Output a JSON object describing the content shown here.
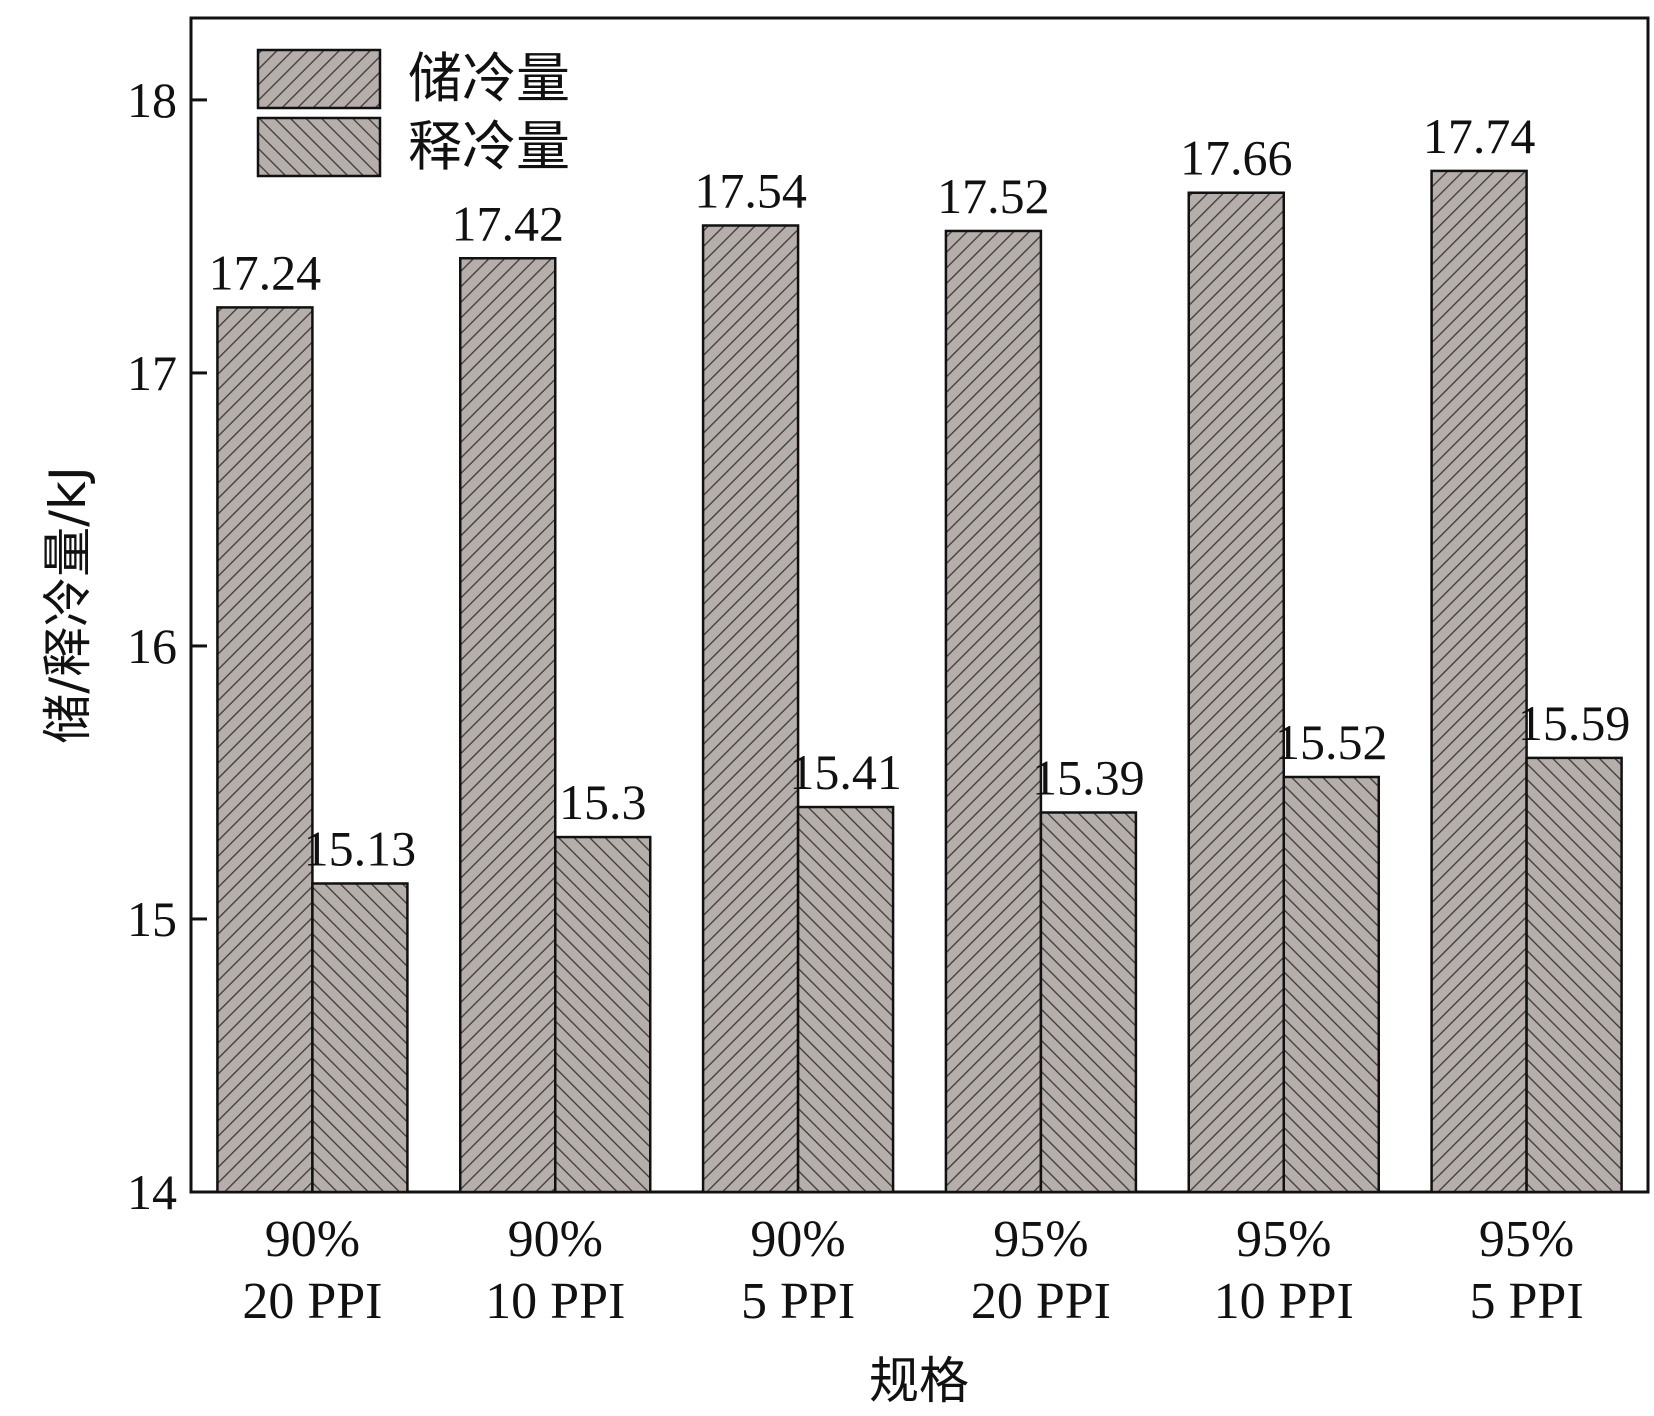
{
  "chart_data": {
    "type": "bar",
    "categories": [
      [
        "90%",
        "20 PPI"
      ],
      [
        "90%",
        "10 PPI"
      ],
      [
        "90%",
        "5 PPI"
      ],
      [
        "95%",
        "20 PPI"
      ],
      [
        "95%",
        "10 PPI"
      ],
      [
        "95%",
        "5 PPI"
      ]
    ],
    "series": [
      {
        "name": "储冷量",
        "values": [
          17.24,
          17.42,
          17.54,
          17.52,
          17.66,
          17.74
        ],
        "data_labels": [
          "17.24",
          "17.42",
          "17.54",
          "17.52",
          "17.66",
          "17.74"
        ],
        "pattern": "hatch-forward"
      },
      {
        "name": "释冷量",
        "values": [
          15.13,
          15.3,
          15.41,
          15.39,
          15.52,
          15.59
        ],
        "data_labels": [
          "15.13",
          "15.3",
          "15.41",
          "15.39",
          "15.52",
          "15.59"
        ],
        "pattern": "hatch-backward"
      }
    ],
    "xlabel": "规格",
    "ylabel": "储/释冷量/kJ",
    "ylim": [
      14,
      18.3
    ],
    "yticks": [
      "14",
      "15",
      "16",
      "17",
      "18"
    ],
    "legend_position": "top-left",
    "grid": false,
    "colors": {
      "bar_fill": "#b5aeaa",
      "hatch": "#3a3a3a",
      "stroke": "#111111"
    }
  }
}
